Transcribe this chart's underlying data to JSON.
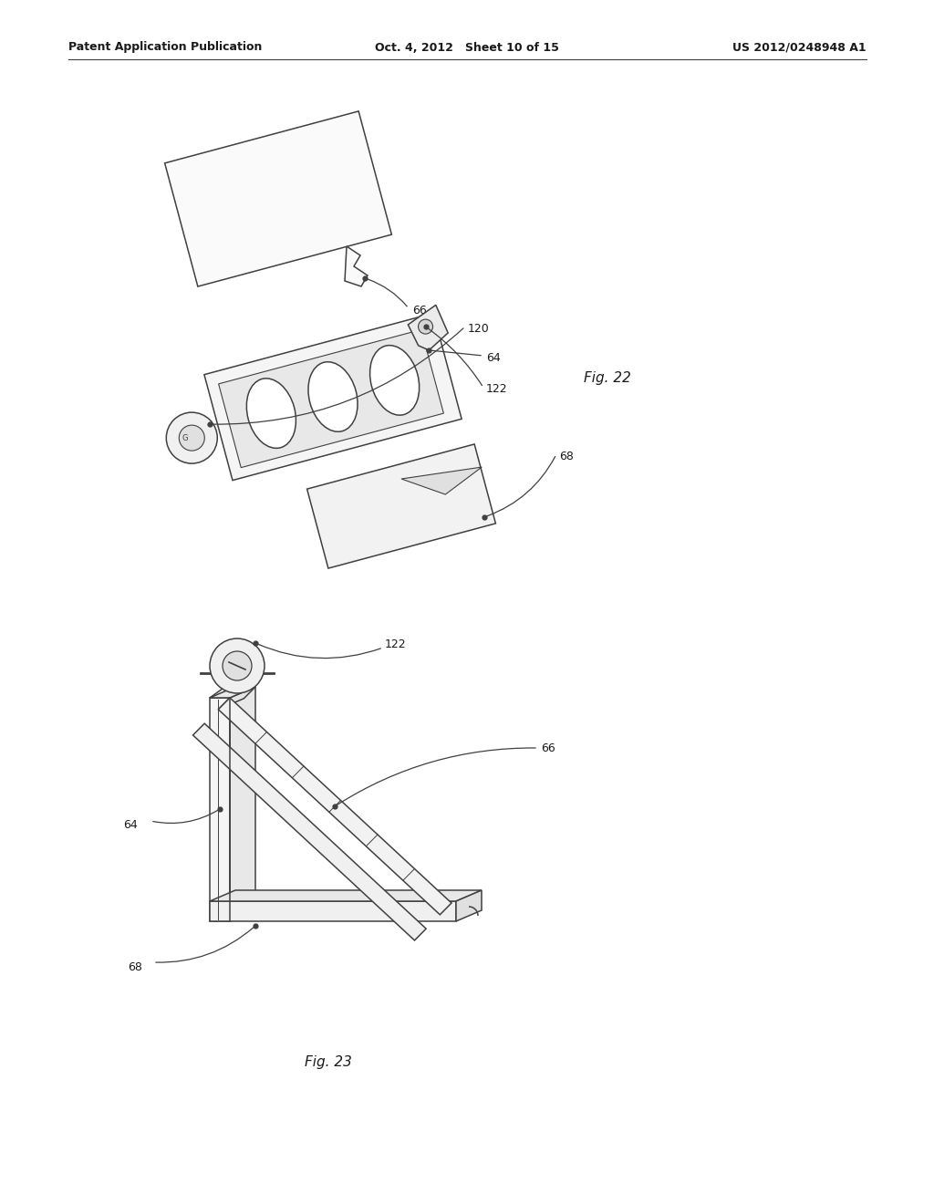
{
  "header_left": "Patent Application Publication",
  "header_mid": "Oct. 4, 2012   Sheet 10 of 15",
  "header_right": "US 2012/0248948 A1",
  "fig22_label": "Fig. 22",
  "fig23_label": "Fig. 23",
  "background_color": "#ffffff",
  "line_color": "#404040",
  "text_color": "#1a1a1a",
  "lw": 1.1
}
